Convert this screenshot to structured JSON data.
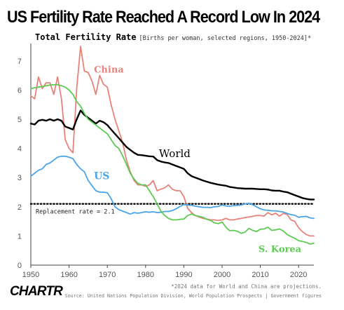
{
  "header": {
    "title": "US Fertility Rate Reached A Record Low In 2024",
    "subtitle": "Total Fertility Rate",
    "subtitle_note": "[Births per woman, selected regions, 1950-2024]*"
  },
  "footer": {
    "logo": "CHARTR",
    "note": "*2024 data for World and China are projections.",
    "source": "Source: United Nations Population Division, World Population Prospects | Government figures"
  },
  "chart_data": {
    "type": "line",
    "title": "Total Fertility Rate",
    "xlabel": "",
    "ylabel": "",
    "xlim": [
      1950,
      2024
    ],
    "ylim": [
      0,
      7.5
    ],
    "x_ticks": [
      1950,
      1960,
      1970,
      1980,
      1990,
      2000,
      2010,
      2020
    ],
    "y_ticks": [
      0,
      1,
      2,
      3,
      4,
      5,
      6,
      7
    ],
    "grid": false,
    "legend": "inline labels",
    "reference_line": {
      "value": 2.1,
      "label": "Replacement rate = 2.1",
      "style": "dotted",
      "color": "#000000"
    },
    "series": [
      {
        "name": "China",
        "color": "#e8837b",
        "points": [
          [
            1950,
            5.8
          ],
          [
            1951,
            5.7
          ],
          [
            1952,
            6.45
          ],
          [
            1953,
            6.05
          ],
          [
            1954,
            6.25
          ],
          [
            1955,
            6.25
          ],
          [
            1956,
            5.85
          ],
          [
            1957,
            6.45
          ],
          [
            1958,
            5.7
          ],
          [
            1959,
            4.3
          ],
          [
            1960,
            4.0
          ],
          [
            1961,
            3.85
          ],
          [
            1962,
            6.05
          ],
          [
            1963,
            7.5
          ],
          [
            1964,
            6.65
          ],
          [
            1965,
            6.6
          ],
          [
            1966,
            6.3
          ],
          [
            1967,
            5.85
          ],
          [
            1968,
            6.5
          ],
          [
            1969,
            6.2
          ],
          [
            1970,
            6.1
          ],
          [
            1971,
            5.5
          ],
          [
            1972,
            5.0
          ],
          [
            1973,
            4.6
          ],
          [
            1974,
            4.2
          ],
          [
            1975,
            3.6
          ],
          [
            1976,
            3.2
          ],
          [
            1977,
            2.9
          ],
          [
            1978,
            2.75
          ],
          [
            1979,
            2.75
          ],
          [
            1980,
            2.7
          ],
          [
            1981,
            2.75
          ],
          [
            1982,
            2.9
          ],
          [
            1983,
            2.55
          ],
          [
            1984,
            2.6
          ],
          [
            1985,
            2.65
          ],
          [
            1986,
            2.75
          ],
          [
            1987,
            2.6
          ],
          [
            1988,
            2.55
          ],
          [
            1989,
            2.55
          ],
          [
            1990,
            2.35
          ],
          [
            1991,
            1.95
          ],
          [
            1992,
            1.8
          ],
          [
            1993,
            1.7
          ],
          [
            1994,
            1.65
          ],
          [
            1995,
            1.6
          ],
          [
            1996,
            1.58
          ],
          [
            1997,
            1.55
          ],
          [
            1998,
            1.55
          ],
          [
            1999,
            1.53
          ],
          [
            2000,
            1.55
          ],
          [
            2001,
            1.6
          ],
          [
            2002,
            1.55
          ],
          [
            2003,
            1.55
          ],
          [
            2004,
            1.58
          ],
          [
            2005,
            1.6
          ],
          [
            2006,
            1.63
          ],
          [
            2007,
            1.65
          ],
          [
            2008,
            1.67
          ],
          [
            2009,
            1.7
          ],
          [
            2010,
            1.7
          ],
          [
            2011,
            1.68
          ],
          [
            2012,
            1.8
          ],
          [
            2013,
            1.72
          ],
          [
            2014,
            1.78
          ],
          [
            2015,
            1.68
          ],
          [
            2016,
            1.77
          ],
          [
            2017,
            1.74
          ],
          [
            2018,
            1.55
          ],
          [
            2019,
            1.5
          ],
          [
            2020,
            1.28
          ],
          [
            2021,
            1.15
          ],
          [
            2022,
            1.05
          ],
          [
            2023,
            1.0
          ],
          [
            2024,
            1.0
          ]
        ]
      },
      {
        "name": "World",
        "color": "#000000",
        "points": [
          [
            1950,
            4.85
          ],
          [
            1951,
            4.82
          ],
          [
            1952,
            4.95
          ],
          [
            1953,
            4.98
          ],
          [
            1954,
            4.95
          ],
          [
            1955,
            5.0
          ],
          [
            1956,
            4.95
          ],
          [
            1957,
            5.0
          ],
          [
            1958,
            4.95
          ],
          [
            1959,
            4.75
          ],
          [
            1960,
            4.7
          ],
          [
            1961,
            4.65
          ],
          [
            1962,
            5.0
          ],
          [
            1963,
            5.3
          ],
          [
            1964,
            5.15
          ],
          [
            1965,
            5.05
          ],
          [
            1966,
            4.95
          ],
          [
            1967,
            4.85
          ],
          [
            1968,
            4.95
          ],
          [
            1969,
            4.9
          ],
          [
            1970,
            4.8
          ],
          [
            1971,
            4.65
          ],
          [
            1972,
            4.5
          ],
          [
            1973,
            4.35
          ],
          [
            1974,
            4.2
          ],
          [
            1975,
            4.05
          ],
          [
            1976,
            3.95
          ],
          [
            1977,
            3.85
          ],
          [
            1978,
            3.78
          ],
          [
            1979,
            3.77
          ],
          [
            1980,
            3.75
          ],
          [
            1981,
            3.73
          ],
          [
            1982,
            3.72
          ],
          [
            1983,
            3.6
          ],
          [
            1984,
            3.55
          ],
          [
            1985,
            3.52
          ],
          [
            1986,
            3.5
          ],
          [
            1987,
            3.45
          ],
          [
            1988,
            3.4
          ],
          [
            1989,
            3.35
          ],
          [
            1990,
            3.3
          ],
          [
            1991,
            3.15
          ],
          [
            1992,
            3.05
          ],
          [
            1993,
            3.0
          ],
          [
            1994,
            2.95
          ],
          [
            1995,
            2.9
          ],
          [
            1996,
            2.86
          ],
          [
            1997,
            2.82
          ],
          [
            1998,
            2.79
          ],
          [
            1999,
            2.76
          ],
          [
            2000,
            2.74
          ],
          [
            2001,
            2.72
          ],
          [
            2002,
            2.68
          ],
          [
            2003,
            2.66
          ],
          [
            2004,
            2.64
          ],
          [
            2005,
            2.63
          ],
          [
            2006,
            2.62
          ],
          [
            2007,
            2.62
          ],
          [
            2008,
            2.62
          ],
          [
            2009,
            2.61
          ],
          [
            2010,
            2.6
          ],
          [
            2011,
            2.6
          ],
          [
            2012,
            2.59
          ],
          [
            2013,
            2.56
          ],
          [
            2014,
            2.55
          ],
          [
            2015,
            2.55
          ],
          [
            2016,
            2.52
          ],
          [
            2017,
            2.5
          ],
          [
            2018,
            2.45
          ],
          [
            2019,
            2.4
          ],
          [
            2020,
            2.35
          ],
          [
            2021,
            2.3
          ],
          [
            2022,
            2.27
          ],
          [
            2023,
            2.25
          ],
          [
            2024,
            2.25
          ]
        ]
      },
      {
        "name": "US",
        "color": "#4ba3e8",
        "points": [
          [
            1950,
            3.05
          ],
          [
            1951,
            3.15
          ],
          [
            1952,
            3.25
          ],
          [
            1953,
            3.3
          ],
          [
            1954,
            3.45
          ],
          [
            1955,
            3.5
          ],
          [
            1956,
            3.6
          ],
          [
            1957,
            3.7
          ],
          [
            1958,
            3.73
          ],
          [
            1959,
            3.73
          ],
          [
            1960,
            3.7
          ],
          [
            1961,
            3.65
          ],
          [
            1962,
            3.45
          ],
          [
            1963,
            3.3
          ],
          [
            1964,
            3.2
          ],
          [
            1965,
            2.9
          ],
          [
            1966,
            2.72
          ],
          [
            1967,
            2.55
          ],
          [
            1968,
            2.5
          ],
          [
            1969,
            2.5
          ],
          [
            1970,
            2.48
          ],
          [
            1971,
            2.28
          ],
          [
            1972,
            2.0
          ],
          [
            1973,
            1.9
          ],
          [
            1974,
            1.85
          ],
          [
            1975,
            1.8
          ],
          [
            1976,
            1.75
          ],
          [
            1977,
            1.8
          ],
          [
            1978,
            1.78
          ],
          [
            1979,
            1.8
          ],
          [
            1980,
            1.83
          ],
          [
            1981,
            1.81
          ],
          [
            1982,
            1.83
          ],
          [
            1983,
            1.8
          ],
          [
            1984,
            1.81
          ],
          [
            1985,
            1.84
          ],
          [
            1986,
            1.84
          ],
          [
            1987,
            1.87
          ],
          [
            1988,
            1.93
          ],
          [
            1989,
            2.01
          ],
          [
            1990,
            2.08
          ],
          [
            1991,
            2.06
          ],
          [
            1992,
            2.05
          ],
          [
            1993,
            2.02
          ],
          [
            1994,
            2.0
          ],
          [
            1995,
            1.98
          ],
          [
            1996,
            1.98
          ],
          [
            1997,
            1.97
          ],
          [
            1998,
            2.0
          ],
          [
            1999,
            2.01
          ],
          [
            2000,
            2.06
          ],
          [
            2001,
            2.03
          ],
          [
            2002,
            2.02
          ],
          [
            2003,
            2.04
          ],
          [
            2004,
            2.05
          ],
          [
            2005,
            2.06
          ],
          [
            2006,
            2.1
          ],
          [
            2007,
            2.12
          ],
          [
            2008,
            2.07
          ],
          [
            2009,
            2.0
          ],
          [
            2010,
            1.93
          ],
          [
            2011,
            1.89
          ],
          [
            2012,
            1.88
          ],
          [
            2013,
            1.86
          ],
          [
            2014,
            1.86
          ],
          [
            2015,
            1.84
          ],
          [
            2016,
            1.82
          ],
          [
            2017,
            1.77
          ],
          [
            2018,
            1.73
          ],
          [
            2019,
            1.71
          ],
          [
            2020,
            1.64
          ],
          [
            2021,
            1.66
          ],
          [
            2022,
            1.67
          ],
          [
            2023,
            1.62
          ],
          [
            2024,
            1.6
          ]
        ]
      },
      {
        "name": "S. Korea",
        "color": "#5ecb52",
        "points": [
          [
            1950,
            6.05
          ],
          [
            1951,
            6.08
          ],
          [
            1952,
            6.1
          ],
          [
            1953,
            6.12
          ],
          [
            1954,
            6.15
          ],
          [
            1955,
            6.17
          ],
          [
            1956,
            6.18
          ],
          [
            1957,
            6.18
          ],
          [
            1958,
            6.15
          ],
          [
            1959,
            6.1
          ],
          [
            1960,
            6.0
          ],
          [
            1961,
            5.85
          ],
          [
            1962,
            5.6
          ],
          [
            1963,
            5.45
          ],
          [
            1964,
            5.2
          ],
          [
            1965,
            5.0
          ],
          [
            1966,
            4.9
          ],
          [
            1967,
            4.8
          ],
          [
            1968,
            4.7
          ],
          [
            1969,
            4.6
          ],
          [
            1970,
            4.5
          ],
          [
            1971,
            4.3
          ],
          [
            1972,
            4.1
          ],
          [
            1973,
            4.0
          ],
          [
            1974,
            3.75
          ],
          [
            1975,
            3.45
          ],
          [
            1976,
            3.15
          ],
          [
            1977,
            2.95
          ],
          [
            1978,
            2.8
          ],
          [
            1979,
            2.75
          ],
          [
            1980,
            2.75
          ],
          [
            1981,
            2.55
          ],
          [
            1982,
            2.35
          ],
          [
            1983,
            2.1
          ],
          [
            1984,
            1.85
          ],
          [
            1985,
            1.7
          ],
          [
            1986,
            1.6
          ],
          [
            1987,
            1.55
          ],
          [
            1988,
            1.55
          ],
          [
            1989,
            1.57
          ],
          [
            1990,
            1.58
          ],
          [
            1991,
            1.7
          ],
          [
            1992,
            1.75
          ],
          [
            1993,
            1.7
          ],
          [
            1994,
            1.67
          ],
          [
            1995,
            1.64
          ],
          [
            1996,
            1.57
          ],
          [
            1997,
            1.53
          ],
          [
            1998,
            1.45
          ],
          [
            1999,
            1.42
          ],
          [
            2000,
            1.48
          ],
          [
            2001,
            1.3
          ],
          [
            2002,
            1.18
          ],
          [
            2003,
            1.19
          ],
          [
            2004,
            1.16
          ],
          [
            2005,
            1.09
          ],
          [
            2006,
            1.13
          ],
          [
            2007,
            1.26
          ],
          [
            2008,
            1.19
          ],
          [
            2009,
            1.15
          ],
          [
            2010,
            1.23
          ],
          [
            2011,
            1.24
          ],
          [
            2012,
            1.3
          ],
          [
            2013,
            1.19
          ],
          [
            2014,
            1.21
          ],
          [
            2015,
            1.24
          ],
          [
            2016,
            1.17
          ],
          [
            2017,
            1.05
          ],
          [
            2018,
            0.98
          ],
          [
            2019,
            0.92
          ],
          [
            2020,
            0.84
          ],
          [
            2021,
            0.81
          ],
          [
            2022,
            0.78
          ],
          [
            2023,
            0.72
          ],
          [
            2024,
            0.75
          ]
        ]
      }
    ]
  }
}
